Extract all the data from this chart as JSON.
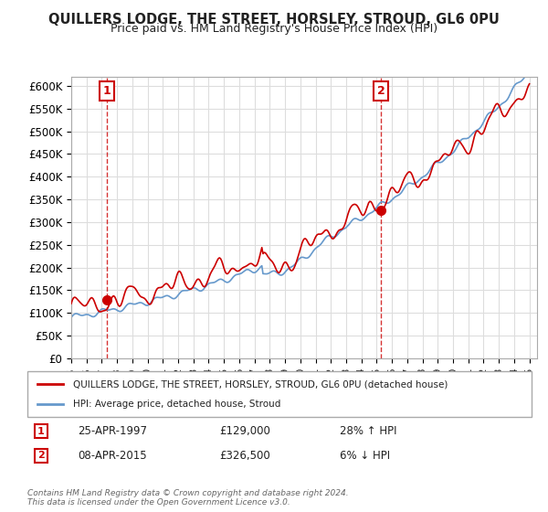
{
  "title": "QUILLERS LODGE, THE STREET, HORSLEY, STROUD, GL6 0PU",
  "subtitle": "Price paid vs. HM Land Registry's House Price Index (HPI)",
  "xlabel": "",
  "ylabel": "",
  "ylim": [
    0,
    620000
  ],
  "yticks": [
    0,
    50000,
    100000,
    150000,
    200000,
    250000,
    300000,
    350000,
    400000,
    450000,
    500000,
    550000,
    600000
  ],
  "ytick_labels": [
    "£0",
    "£50K",
    "£100K",
    "£150K",
    "£200K",
    "£250K",
    "£300K",
    "£350K",
    "£400K",
    "£450K",
    "£500K",
    "£550K",
    "£600K"
  ],
  "sale1_date": 1997.32,
  "sale1_price": 129000,
  "sale1_label": "1",
  "sale2_date": 2015.27,
  "sale2_price": 326500,
  "sale2_label": "2",
  "red_color": "#cc0000",
  "blue_color": "#6699cc",
  "legend_entry1": "QUILLERS LODGE, THE STREET, HORSLEY, STROUD, GL6 0PU (detached house)",
  "legend_entry2": "HPI: Average price, detached house, Stroud",
  "table_row1": [
    "1",
    "25-APR-1997",
    "£129,000",
    "28% ↑ HPI"
  ],
  "table_row2": [
    "2",
    "08-APR-2015",
    "£326,500",
    "6% ↓ HPI"
  ],
  "footnote": "Contains HM Land Registry data © Crown copyright and database right 2024.\nThis data is licensed under the Open Government Licence v3.0.",
  "background_color": "#ffffff",
  "grid_color": "#dddddd"
}
